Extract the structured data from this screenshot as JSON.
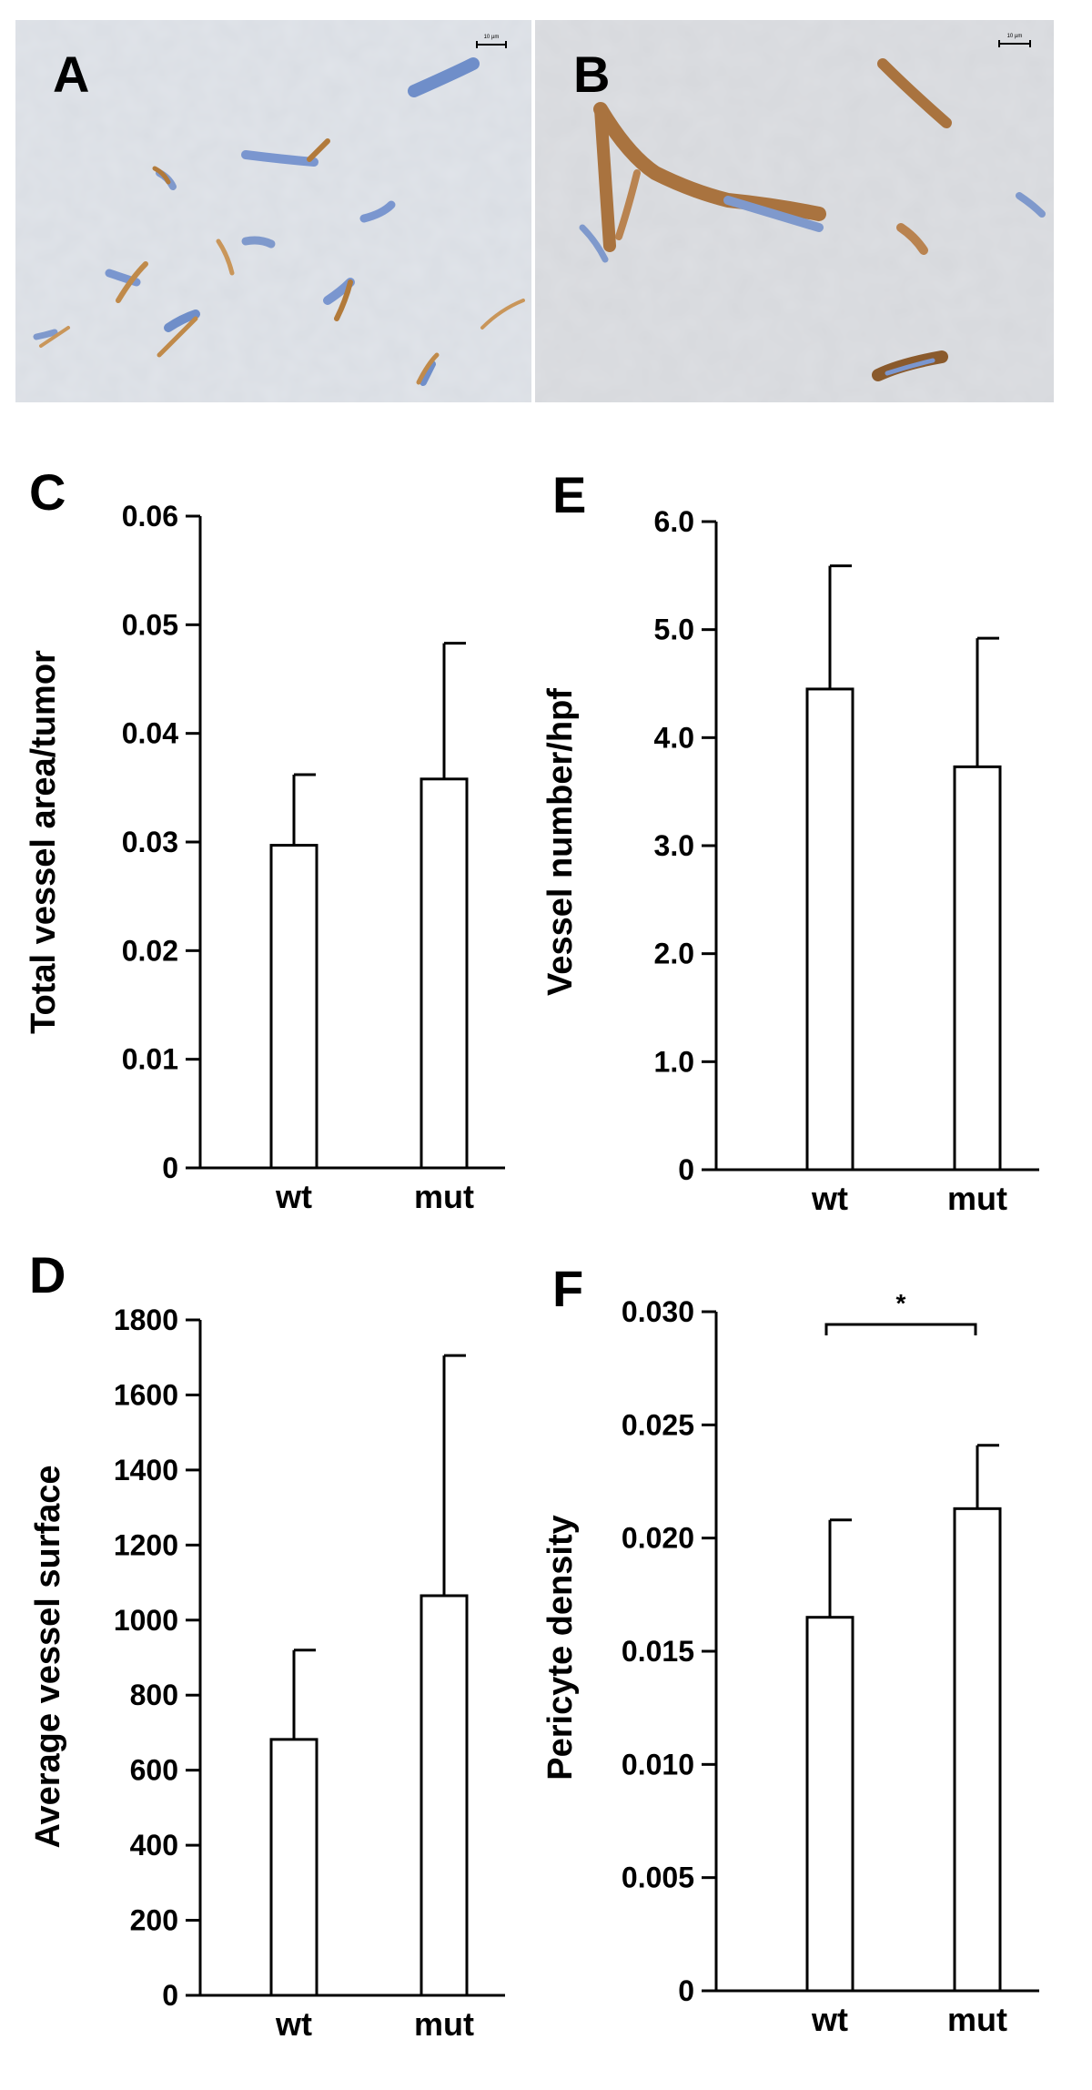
{
  "micrographs": [
    {
      "label": "A",
      "scale_bar_text": "10 µm"
    },
    {
      "label": "B",
      "scale_bar_text": "10 µm"
    }
  ],
  "chart_data": [
    {
      "panel": "C",
      "type": "bar",
      "categories": [
        "wt",
        "mut"
      ],
      "values": [
        0.0297,
        0.0358
      ],
      "errors": [
        0.0065,
        0.0125
      ],
      "ylabel": "Total vessel area/tumor",
      "ylim": [
        0,
        0.06
      ],
      "yticks": [
        0,
        0.01,
        0.02,
        0.03,
        0.04,
        0.05,
        0.06
      ],
      "ytick_labels": [
        "0",
        "0.01",
        "0.02",
        "0.03",
        "0.04",
        "0.05",
        "0.06"
      ],
      "significance": null
    },
    {
      "panel": "E",
      "type": "bar",
      "categories": [
        "wt",
        "mut"
      ],
      "values": [
        4.45,
        3.73
      ],
      "errors": [
        1.14,
        1.19
      ],
      "ylabel": "Vessel number/hpf",
      "ylim": [
        0,
        6.0
      ],
      "yticks": [
        0,
        1,
        2,
        3,
        4,
        5,
        6
      ],
      "ytick_labels": [
        "0",
        "1.0",
        "2.0",
        "3.0",
        "4.0",
        "5.0",
        "6.0"
      ],
      "significance": null
    },
    {
      "panel": "D",
      "type": "bar",
      "categories": [
        "wt",
        "mut"
      ],
      "values": [
        682,
        1065
      ],
      "errors": [
        238,
        640
      ],
      "ylabel": "Average vessel surface",
      "ylim": [
        0,
        1800
      ],
      "yticks": [
        0,
        200,
        400,
        600,
        800,
        1000,
        1200,
        1400,
        1600,
        1800
      ],
      "ytick_labels": [
        "0",
        "200",
        "400",
        "600",
        "800",
        "1000",
        "1200",
        "1400",
        "1600",
        "1800"
      ],
      "significance": null
    },
    {
      "panel": "F",
      "type": "bar",
      "categories": [
        "wt",
        "mut"
      ],
      "values": [
        0.0165,
        0.0213
      ],
      "errors": [
        0.0043,
        0.0028
      ],
      "ylabel": "Pericyte density",
      "ylim": [
        0,
        0.03
      ],
      "yticks": [
        0,
        0.005,
        0.01,
        0.015,
        0.02,
        0.025,
        0.03
      ],
      "ytick_labels": [
        "0",
        "0.005",
        "0.010",
        "0.015",
        "0.020",
        "0.025",
        "0.030"
      ],
      "significance": "*"
    }
  ]
}
